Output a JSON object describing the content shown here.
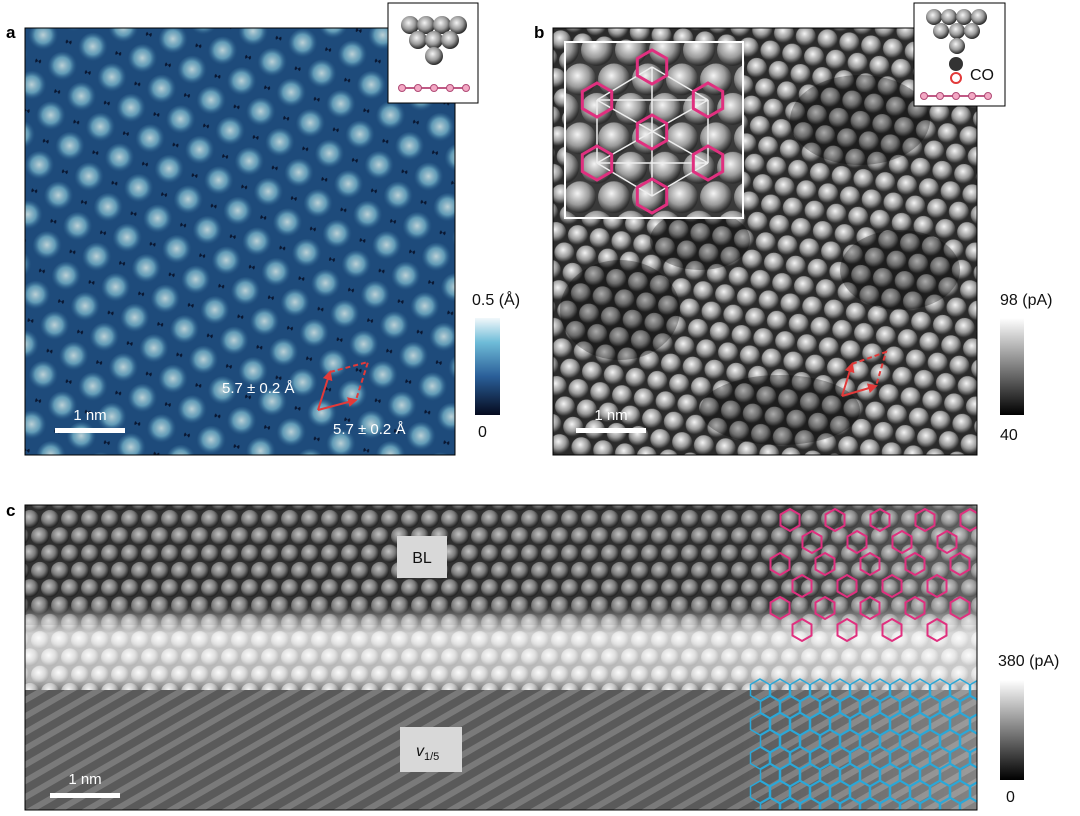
{
  "panels": [
    {
      "label": "a",
      "scale_bar": "1 nm",
      "lattice_labels": [
        "5.7 ± 0.2 Å",
        "5.7 ± 0.2 Å"
      ],
      "colorbar": {
        "max": "0.5 (Å)",
        "min": "0"
      }
    },
    {
      "label": "b",
      "scale_bar": "1 nm",
      "tip_label": "CO",
      "colorbar": {
        "max": "98 (pA)",
        "min": "40"
      }
    },
    {
      "label": "c",
      "scale_bar": "1 nm",
      "region_top": "BL",
      "region_bottom": {
        "symbol": "v",
        "subscript": "1/5"
      },
      "colorbar": {
        "max": "380 (pA)",
        "min": "0"
      }
    }
  ]
}
